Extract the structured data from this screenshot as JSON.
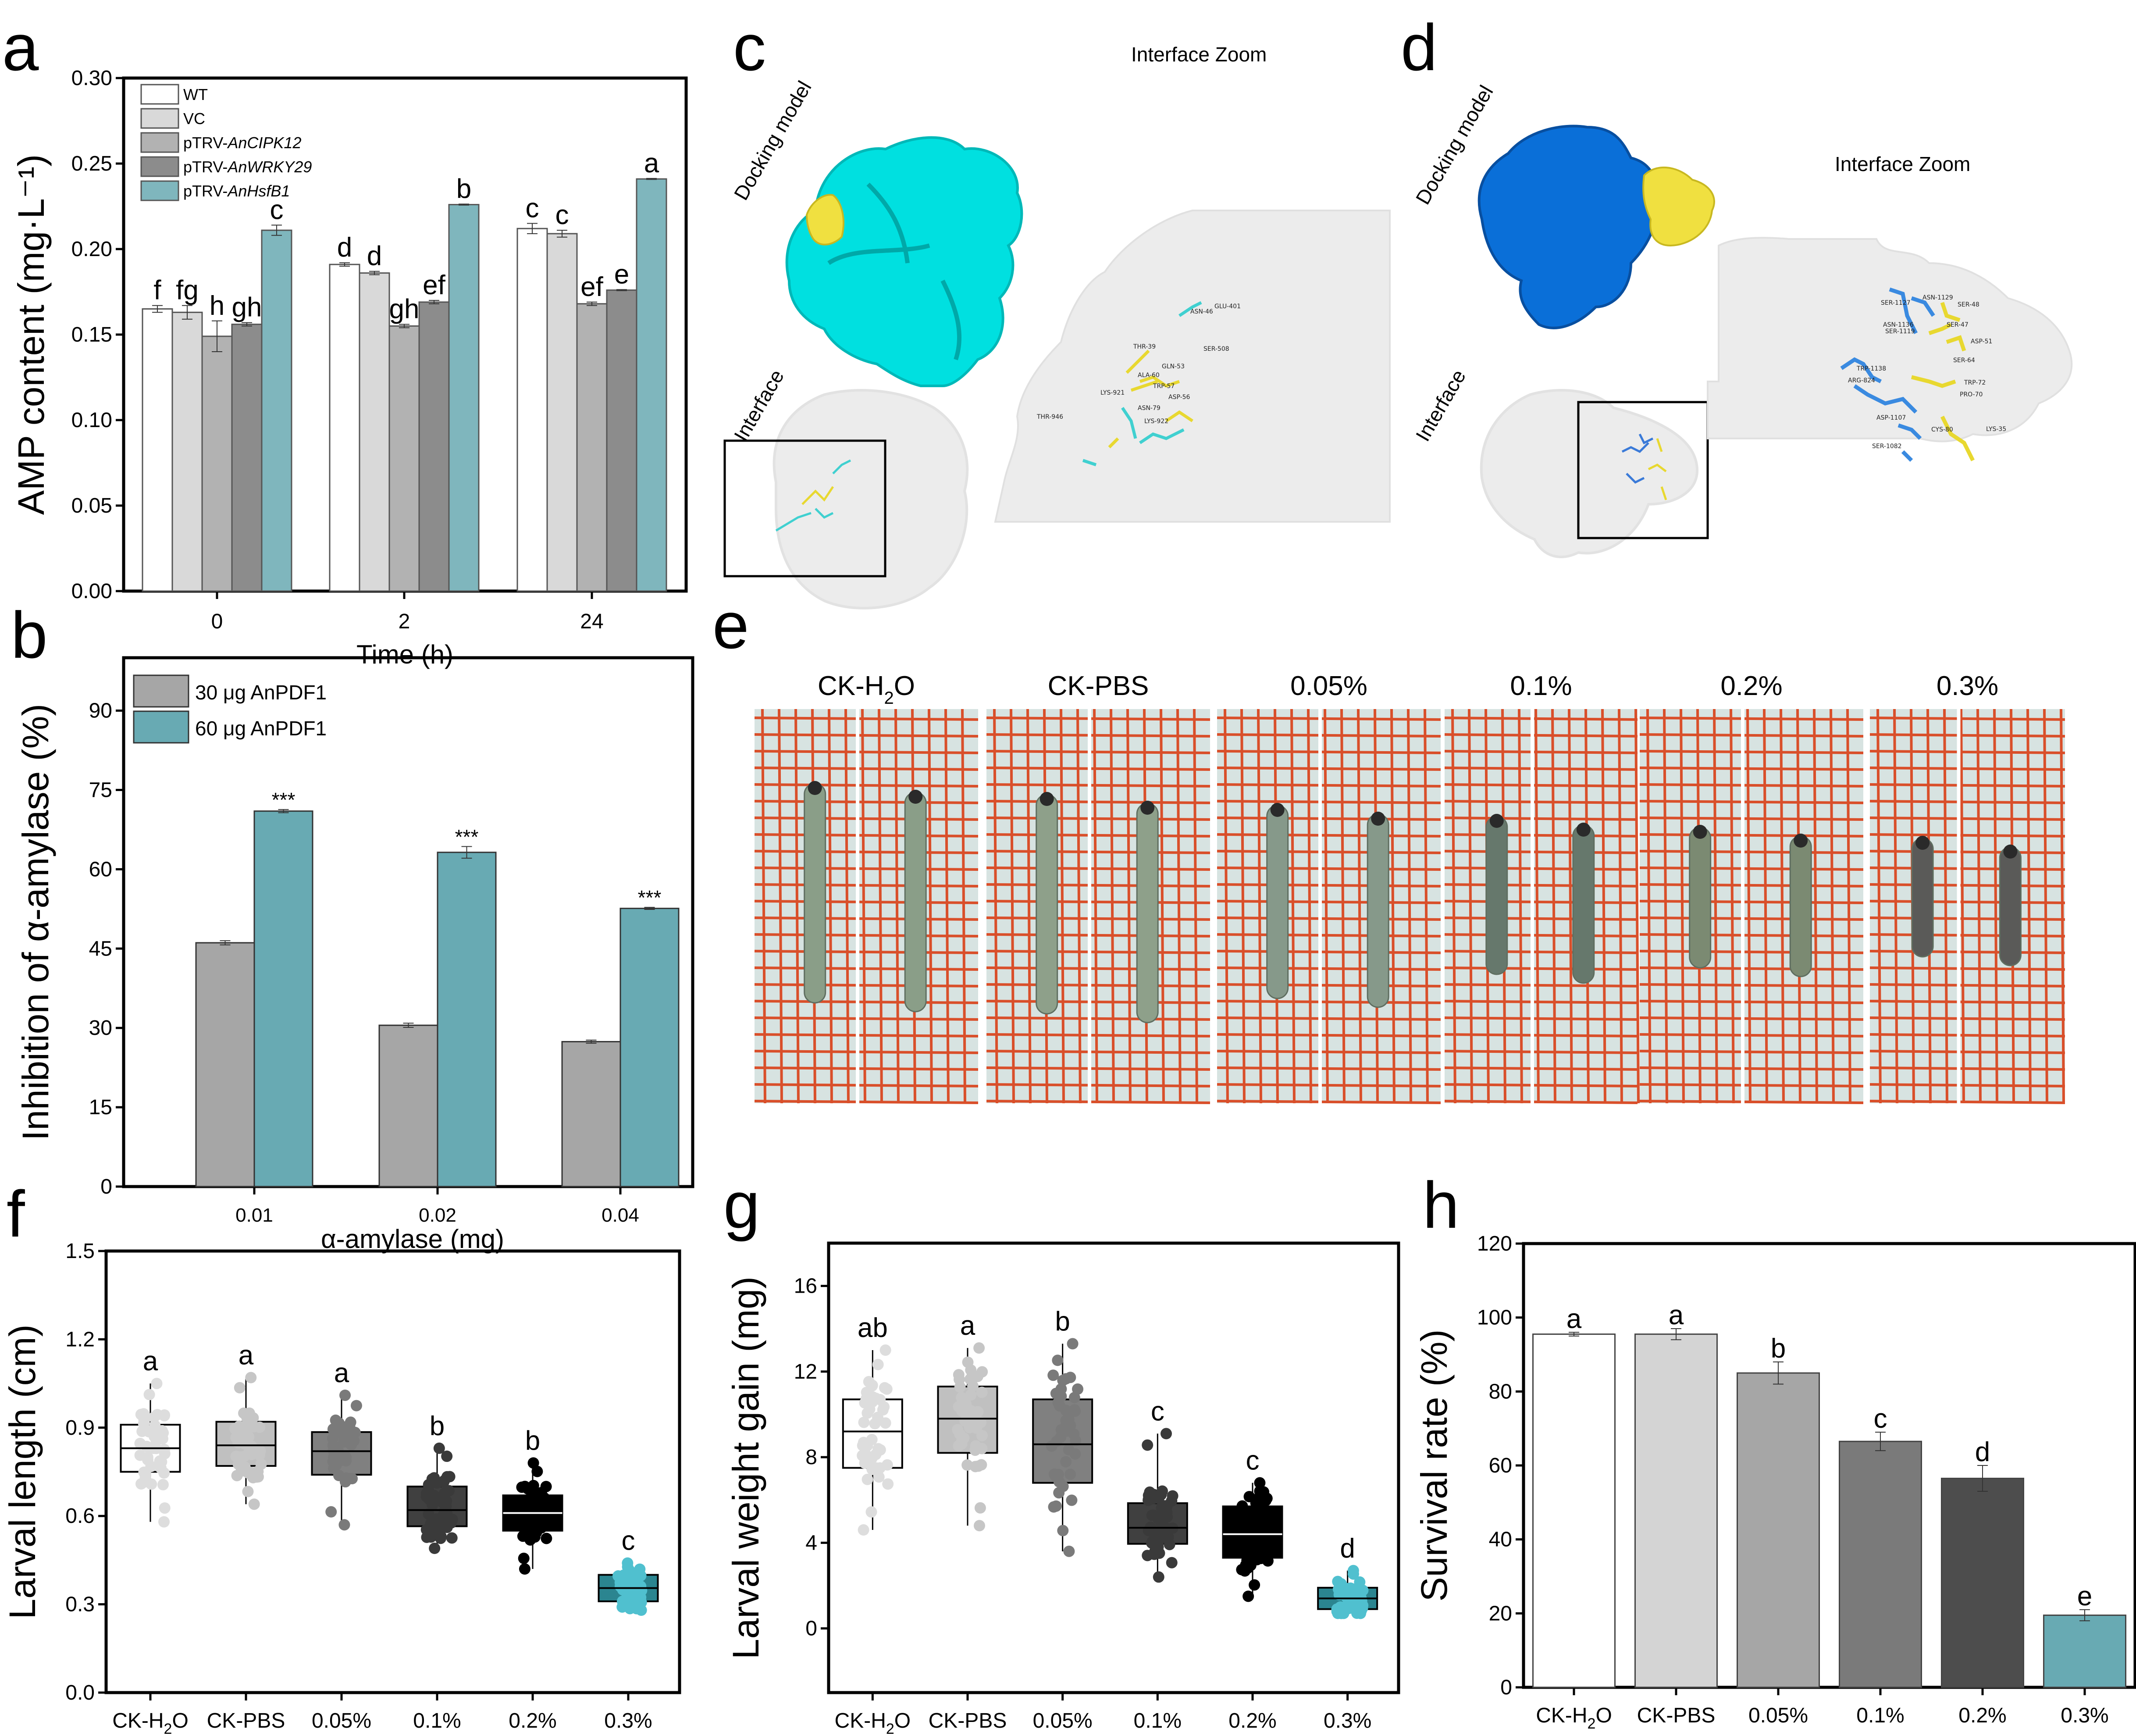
{
  "panels": {
    "a": {
      "letter": "a"
    },
    "b": {
      "letter": "b"
    },
    "c": {
      "letter": "c",
      "docking_label": "Docking model",
      "interface_label": "Interface",
      "zoom_title": "Interface Zoom",
      "receptor_color": "#00e5e5",
      "ligand_color": "#f0e040",
      "residues": [
        "GLU-401",
        "ASN-46",
        "THR-39",
        "SER-508",
        "GLN-53",
        "ALA-60",
        "TRP-57",
        "LYS-921",
        "ASP-56",
        "ASN-79",
        "THR-946",
        "LYS-922"
      ]
    },
    "d": {
      "letter": "d",
      "docking_label": "Docking model",
      "interface_label": "Interface",
      "zoom_title": "Interface Zoom",
      "receptor_color": "#0a6fd8",
      "ligand_color": "#f0e040",
      "residues": [
        "SER-1127",
        "ASN-1129",
        "SER-48",
        "ASN-1136",
        "SER-47",
        "SER-1119",
        "ASP-51",
        "TRP-1138",
        "SER-64",
        "ARG-824",
        "TRP-72",
        "PRO-70",
        "ASP-1107",
        "CYS-80",
        "LYS-35",
        "SER-1082"
      ]
    },
    "e": {
      "letter": "e",
      "groups": [
        {
          "label": "CK-H",
          "sub": "2",
          "label_end": "O"
        },
        {
          "label": "CK-PBS"
        },
        {
          "label": "0.05%"
        },
        {
          "label": "0.1%"
        },
        {
          "label": "0.2%"
        },
        {
          "label": "0.3%"
        }
      ]
    },
    "f": {
      "letter": "f"
    },
    "g": {
      "letter": "g"
    },
    "h": {
      "letter": "h"
    }
  },
  "chart_data": [
    {
      "id": "a",
      "type": "bar",
      "title": "",
      "xlabel": "Time (h)",
      "ylabel": "AMP content (mg·L⁻¹)",
      "ylim": [
        0,
        0.3
      ],
      "yticks": [
        0.0,
        0.05,
        0.1,
        0.15,
        0.2,
        0.25,
        0.3
      ],
      "ytick_labels": [
        "0.00",
        "0.05",
        "0.10",
        "0.15",
        "0.20",
        "0.25",
        "0.30"
      ],
      "categories": [
        "0",
        "2",
        "24"
      ],
      "legend_position": "top-left",
      "series": [
        {
          "name": "WT",
          "name_prefix": "WT",
          "name_italic": "",
          "color": "#ffffff",
          "values": [
            0.165,
            0.191,
            0.212
          ],
          "errors": [
            0.002,
            0.001,
            0.003
          ],
          "letters": [
            "f",
            "d",
            "c"
          ]
        },
        {
          "name": "VC",
          "name_prefix": "VC",
          "name_italic": "",
          "color": "#d9d9d9",
          "values": [
            0.163,
            0.186,
            0.209
          ],
          "errors": [
            0.004,
            0.001,
            0.002
          ],
          "letters": [
            "fg",
            "d",
            "c"
          ]
        },
        {
          "name": "pTRV-AnCIPK12",
          "name_prefix": "pTRV-",
          "name_italic": "AnCIPK12",
          "color": "#b2b2b2",
          "values": [
            0.149,
            0.155,
            0.168
          ],
          "errors": [
            0.009,
            0.001,
            0.001
          ],
          "letters": [
            "h",
            "gh",
            "ef"
          ]
        },
        {
          "name": "pTRV-AnWRKY29",
          "name_prefix": "pTRV-",
          "name_italic": "AnWRKY29",
          "color": "#8c8c8c",
          "values": [
            0.156,
            0.169,
            0.176
          ],
          "errors": [
            0.001,
            0.001,
            0.0003
          ],
          "letters": [
            "gh",
            "ef",
            "e"
          ]
        },
        {
          "name": "pTRV-AnHsfB1",
          "name_prefix": "pTRV-",
          "name_italic": "AnHsfB1",
          "color": "#7fb6bd",
          "values": [
            0.211,
            0.226,
            0.241
          ],
          "errors": [
            0.003,
            0.0003,
            0.0003
          ],
          "letters": [
            "c",
            "b",
            "a"
          ]
        }
      ]
    },
    {
      "id": "b",
      "type": "bar",
      "title": "",
      "xlabel": "α-amylase (mg)",
      "ylabel": "Inhibition of α-amylase (%)",
      "ylim": [
        0,
        100
      ],
      "yticks": [
        0,
        15,
        30,
        45,
        60,
        75,
        90
      ],
      "ytick_labels": [
        "0",
        "15",
        "30",
        "45",
        "60",
        "75",
        "90"
      ],
      "categories": [
        "0.01",
        "0.02",
        "0.04"
      ],
      "legend_position": "top-left",
      "series": [
        {
          "name": "30 μg AnPDF1",
          "color": "#a6a6a6",
          "values": [
            46.1,
            30.5,
            27.4
          ],
          "errors": [
            0.4,
            0.4,
            0.3
          ]
        },
        {
          "name": "60 μg AnPDF1",
          "color": "#68aab3",
          "values": [
            71.0,
            63.2,
            52.6
          ],
          "errors": [
            0.3,
            1.1,
            0.2
          ]
        }
      ],
      "annotations": [
        "***",
        "***",
        "***"
      ]
    },
    {
      "id": "f",
      "type": "box",
      "title": "",
      "xlabel": "",
      "ylabel": "Larval length (cm)",
      "ylim": [
        0,
        1.5
      ],
      "yticks": [
        0.0,
        0.3,
        0.6,
        0.9,
        1.2,
        1.5
      ],
      "ytick_labels": [
        "0.0",
        "0.3",
        "0.6",
        "0.9",
        "1.2",
        "1.5"
      ],
      "categories": [
        "CK-H2O",
        "CK-PBS",
        "0.05%",
        "0.1%",
        "0.2%",
        "0.3%"
      ],
      "boxes": [
        {
          "q1": 0.75,
          "median": 0.83,
          "q3": 0.91,
          "min": 0.58,
          "max": 1.05,
          "letter": "a",
          "fill": "#ffffff",
          "point": "#dddddd",
          "median_color": "#000000"
        },
        {
          "q1": 0.77,
          "median": 0.84,
          "q3": 0.92,
          "min": 0.64,
          "max": 1.07,
          "letter": "a",
          "fill": "#c0c0c0",
          "point": "#c6c6c6",
          "median_color": "#000000"
        },
        {
          "q1": 0.74,
          "median": 0.82,
          "q3": 0.885,
          "min": 0.57,
          "max": 1.01,
          "letter": "a",
          "fill": "#808080",
          "point": "#7a7a7a",
          "median_color": "#000000"
        },
        {
          "q1": 0.565,
          "median": 0.62,
          "q3": 0.7,
          "min": 0.49,
          "max": 0.83,
          "letter": "b",
          "fill": "#404040",
          "point": "#3a3a3a",
          "median_color": "#000000"
        },
        {
          "q1": 0.55,
          "median": 0.61,
          "q3": 0.67,
          "min": 0.42,
          "max": 0.78,
          "letter": "b",
          "fill": "#000000",
          "point": "#000000",
          "median_color": "#ffffff"
        },
        {
          "q1": 0.31,
          "median": 0.355,
          "q3": 0.4,
          "min": 0.28,
          "max": 0.44,
          "letter": "c",
          "fill": "#2b8590",
          "point": "#50c0cf",
          "median_color": "#000000"
        }
      ]
    },
    {
      "id": "g",
      "type": "box",
      "title": "",
      "xlabel": "",
      "ylabel": "Larval weight gain (mg)",
      "ylim": [
        -3,
        18
      ],
      "yticks": [
        0,
        4,
        8,
        12,
        16
      ],
      "ytick_labels": [
        "0",
        "4",
        "8",
        "12",
        "16"
      ],
      "categories": [
        "CK-H2O",
        "CK-PBS",
        "0.05%",
        "0.1%",
        "0.2%",
        "0.3%"
      ],
      "boxes": [
        {
          "q1": 7.5,
          "median": 9.2,
          "q3": 10.7,
          "min": 4.6,
          "max": 13.0,
          "letter": "ab",
          "fill": "#ffffff",
          "point": "#dddddd",
          "median_color": "#000000"
        },
        {
          "q1": 8.2,
          "median": 9.8,
          "q3": 11.3,
          "min": 4.8,
          "max": 13.1,
          "letter": "a",
          "fill": "#c0c0c0",
          "point": "#c6c6c6",
          "median_color": "#000000"
        },
        {
          "q1": 6.8,
          "median": 8.6,
          "q3": 10.7,
          "min": 3.6,
          "max": 13.3,
          "letter": "b",
          "fill": "#808080",
          "point": "#7a7a7a",
          "median_color": "#000000"
        },
        {
          "q1": 3.95,
          "median": 4.7,
          "q3": 5.85,
          "min": 2.4,
          "max": 9.1,
          "letter": "c",
          "fill": "#404040",
          "point": "#3a3a3a",
          "median_color": "#000000"
        },
        {
          "q1": 3.3,
          "median": 4.4,
          "q3": 5.7,
          "min": 1.5,
          "max": 6.8,
          "letter": "c",
          "fill": "#000000",
          "point": "#000000",
          "median_color": "#ffffff"
        },
        {
          "q1": 0.9,
          "median": 1.4,
          "q3": 1.9,
          "min": 0.7,
          "max": 2.7,
          "letter": "d",
          "fill": "#2b8590",
          "point": "#50c0cf",
          "median_color": "#000000"
        }
      ]
    },
    {
      "id": "h",
      "type": "bar",
      "title": "",
      "xlabel": "",
      "ylabel": "Survival rate (%)",
      "ylim": [
        0,
        120
      ],
      "yticks": [
        0,
        20,
        40,
        60,
        80,
        100,
        120
      ],
      "ytick_labels": [
        "0",
        "20",
        "40",
        "60",
        "80",
        "100",
        "120"
      ],
      "categories": [
        "CK-H2O",
        "CK-PBS",
        "0.05%",
        "0.1%",
        "0.2%",
        "0.3%"
      ],
      "values": [
        95.5,
        95.5,
        85.0,
        66.5,
        56.5,
        19.5
      ],
      "errors": [
        0.5,
        1.5,
        3.0,
        2.5,
        3.5,
        1.5
      ],
      "letters": [
        "a",
        "a",
        "b",
        "c",
        "d",
        "e"
      ],
      "colors": [
        "#ffffff",
        "#d4d4d4",
        "#a6a6a6",
        "#7a7a7a",
        "#4d4d4d",
        "#68aab3"
      ]
    }
  ]
}
